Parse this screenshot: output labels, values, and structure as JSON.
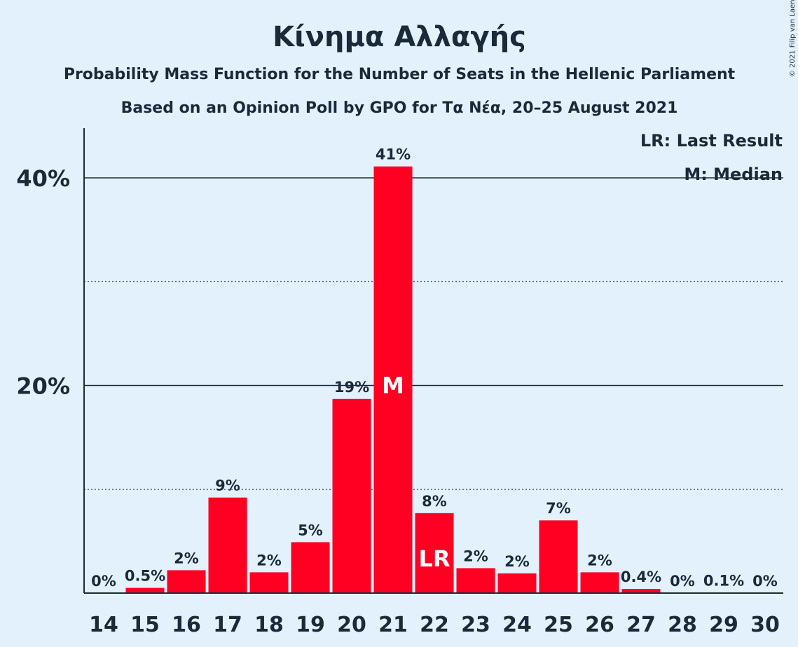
{
  "chart_data": {
    "type": "bar",
    "title": "Κίνημα Αλλαγής",
    "subtitle": "Probability Mass Function for the Number of Seats in the Hellenic Parliament",
    "subtitle2": "Based on an Opinion Poll by GPO for Τα Νέα, 20–25 August 2021",
    "copyright": "© 2021 Filip van Laenen",
    "categories": [
      "14",
      "15",
      "16",
      "17",
      "18",
      "19",
      "20",
      "21",
      "22",
      "23",
      "24",
      "25",
      "26",
      "27",
      "28",
      "29",
      "30"
    ],
    "values": [
      0,
      0.5,
      2.2,
      9.2,
      2.0,
      4.9,
      18.7,
      41.1,
      7.7,
      2.4,
      1.9,
      7.0,
      2.0,
      0.4,
      0,
      0.05,
      0
    ],
    "labels": [
      "0%",
      "0.5%",
      "2%",
      "9%",
      "2%",
      "5%",
      "19%",
      "41%",
      "8%",
      "2%",
      "2%",
      "7%",
      "2%",
      "0.4%",
      "0%",
      "0.1%",
      "0%"
    ],
    "yticks": [
      {
        "value": 20,
        "label": "20%"
      },
      {
        "value": 40,
        "label": "40%"
      }
    ],
    "minor_gridlines": [
      10,
      30
    ],
    "ylim": [
      0,
      45
    ],
    "bar_color": "#ff0022",
    "median": {
      "category": "21",
      "marker": "M"
    },
    "last_result": {
      "category": "22",
      "marker": "LR"
    },
    "legend": [
      "LR: Last Result",
      "M: Median"
    ],
    "legend_position": "top-right"
  }
}
